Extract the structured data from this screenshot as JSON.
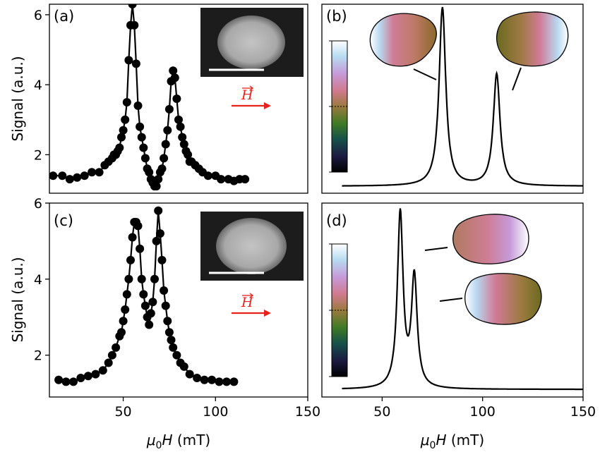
{
  "chart_data": [
    {
      "panel": "(a)",
      "type": "scatter",
      "ylabel": "Signal (a.u.)",
      "xlim": [
        10,
        150
      ],
      "ylim": [
        0.9,
        6.3
      ],
      "yticks": [
        2,
        4,
        6
      ],
      "marker": "filled-circle-with-line",
      "inset_image": "grayscale-disk-micrograph",
      "field_label": "H",
      "field_color": "#e8221b",
      "points": [
        [
          12,
          1.4
        ],
        [
          17,
          1.4
        ],
        [
          21,
          1.3
        ],
        [
          25,
          1.35
        ],
        [
          29,
          1.4
        ],
        [
          33,
          1.5
        ],
        [
          37,
          1.5
        ],
        [
          40,
          1.7
        ],
        [
          42,
          1.8
        ],
        [
          44,
          1.9
        ],
        [
          45,
          2.0
        ],
        [
          46,
          2.0
        ],
        [
          47,
          2.1
        ],
        [
          48,
          2.2
        ],
        [
          49,
          2.5
        ],
        [
          50,
          2.7
        ],
        [
          51,
          3.0
        ],
        [
          52,
          3.5
        ],
        [
          53,
          4.7
        ],
        [
          54,
          5.7
        ],
        [
          55,
          6.3
        ],
        [
          56,
          5.7
        ],
        [
          57,
          4.6
        ],
        [
          58,
          3.4
        ],
        [
          59,
          2.8
        ],
        [
          60,
          2.5
        ],
        [
          61,
          2.2
        ],
        [
          62,
          1.9
        ],
        [
          63,
          1.6
        ],
        [
          64,
          1.5
        ],
        [
          65,
          1.3
        ],
        [
          66,
          1.2
        ],
        [
          67,
          1.1
        ],
        [
          68,
          1.1
        ],
        [
          69,
          1.3
        ],
        [
          70,
          1.5
        ],
        [
          71,
          1.6
        ],
        [
          72,
          1.9
        ],
        [
          73,
          2.3
        ],
        [
          74,
          2.7
        ],
        [
          75,
          3.3
        ],
        [
          76,
          4.1
        ],
        [
          77,
          4.4
        ],
        [
          78,
          4.2
        ],
        [
          79,
          3.6
        ],
        [
          80,
          3.0
        ],
        [
          81,
          2.8
        ],
        [
          82,
          2.5
        ],
        [
          83,
          2.3
        ],
        [
          84,
          2.1
        ],
        [
          85,
          2.0
        ],
        [
          86,
          1.8
        ],
        [
          87,
          1.8
        ],
        [
          89,
          1.7
        ],
        [
          91,
          1.6
        ],
        [
          93,
          1.5
        ],
        [
          96,
          1.4
        ],
        [
          100,
          1.4
        ],
        [
          103,
          1.3
        ],
        [
          107,
          1.3
        ],
        [
          110,
          1.25
        ],
        [
          113,
          1.3
        ],
        [
          116,
          1.3
        ]
      ]
    },
    {
      "panel": "(b)",
      "type": "line",
      "xlim": [
        20,
        150
      ],
      "ylim": [
        0.9,
        6.3
      ],
      "colorbar": "cubehelix",
      "curve": {
        "baseline": 1.1,
        "peaks": [
          [
            80,
            5.1,
            2.0
          ],
          [
            107,
            3.2,
            2.0
          ]
        ]
      },
      "inset_shapes": [
        "magnetization-map-left-peak",
        "magnetization-map-right-peak"
      ]
    },
    {
      "panel": "(c)",
      "type": "scatter",
      "ylabel": "Signal (a.u.)",
      "xlabel": "μ0H (mT)",
      "xlim": [
        10,
        150
      ],
      "ylim": [
        0.9,
        6.0
      ],
      "xticks": [
        50,
        100,
        150
      ],
      "yticks": [
        2,
        4,
        6
      ],
      "marker": "filled-circle-with-line",
      "inset_image": "grayscale-disk-micrograph",
      "field_label": "H",
      "field_color": "#e8221b",
      "points": [
        [
          15,
          1.35
        ],
        [
          19,
          1.3
        ],
        [
          23,
          1.3
        ],
        [
          27,
          1.4
        ],
        [
          31,
          1.45
        ],
        [
          35,
          1.5
        ],
        [
          39,
          1.6
        ],
        [
          42,
          1.8
        ],
        [
          44,
          2.0
        ],
        [
          46,
          2.2
        ],
        [
          48,
          2.5
        ],
        [
          49,
          2.6
        ],
        [
          50,
          2.9
        ],
        [
          51,
          3.2
        ],
        [
          52,
          3.6
        ],
        [
          53,
          4.0
        ],
        [
          54,
          4.5
        ],
        [
          55,
          5.1
        ],
        [
          56,
          5.5
        ],
        [
          57,
          5.5
        ],
        [
          58,
          5.4
        ],
        [
          59,
          4.8
        ],
        [
          60,
          4.0
        ],
        [
          61,
          3.6
        ],
        [
          62,
          3.3
        ],
        [
          63,
          3.0
        ],
        [
          64,
          2.8
        ],
        [
          65,
          3.1
        ],
        [
          66,
          3.4
        ],
        [
          67,
          4.0
        ],
        [
          68,
          5.0
        ],
        [
          69,
          5.8
        ],
        [
          70,
          5.2
        ],
        [
          71,
          4.5
        ],
        [
          72,
          3.7
        ],
        [
          73,
          3.3
        ],
        [
          74,
          2.9
        ],
        [
          75,
          2.6
        ],
        [
          76,
          2.4
        ],
        [
          77,
          2.2
        ],
        [
          79,
          2.0
        ],
        [
          81,
          1.8
        ],
        [
          83,
          1.7
        ],
        [
          86,
          1.5
        ],
        [
          90,
          1.4
        ],
        [
          94,
          1.35
        ],
        [
          98,
          1.35
        ],
        [
          102,
          1.3
        ],
        [
          106,
          1.3
        ],
        [
          110,
          1.3
        ]
      ]
    },
    {
      "panel": "(d)",
      "type": "line",
      "xlabel": "μ0H (mT)",
      "xlim": [
        20,
        150
      ],
      "ylim": [
        0.9,
        6.0
      ],
      "xticks": [
        50,
        100,
        150
      ],
      "colorbar": "cubehelix",
      "curve": {
        "baseline": 1.1,
        "peaks": [
          [
            59,
            4.6,
            1.7
          ],
          [
            66,
            2.9,
            1.7
          ]
        ]
      },
      "inset_shapes": [
        "magnetization-map-upper",
        "magnetization-map-lower"
      ]
    }
  ]
}
